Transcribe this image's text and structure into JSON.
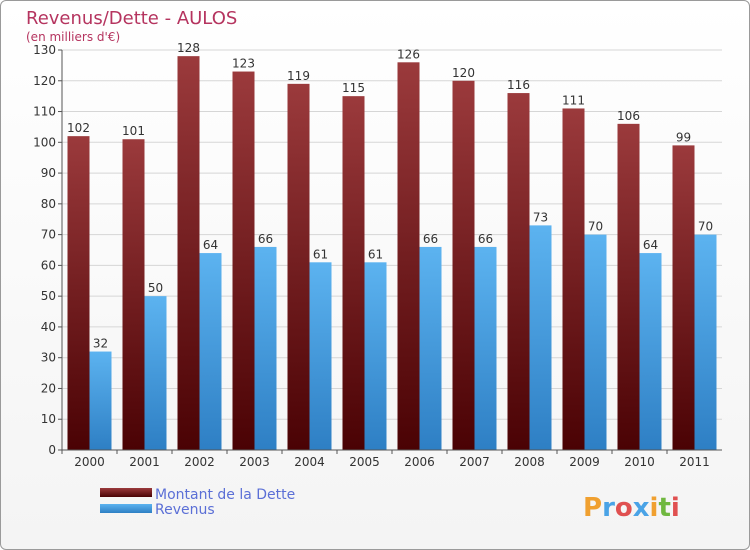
{
  "chart_data": {
    "type": "bar",
    "title": "Revenus/Dette - AULOS",
    "subtitle": "(en milliers d'€)",
    "categories": [
      "2000",
      "2001",
      "2002",
      "2003",
      "2004",
      "2005",
      "2006",
      "2007",
      "2008",
      "2009",
      "2010",
      "2011"
    ],
    "series": [
      {
        "name": "Montant de la Dette",
        "values": [
          102,
          101,
          128,
          123,
          119,
          115,
          126,
          120,
          116,
          111,
          106,
          99
        ],
        "color": "#7a1416"
      },
      {
        "name": "Revenus",
        "values": [
          32,
          50,
          64,
          66,
          61,
          61,
          66,
          66,
          73,
          70,
          64,
          70
        ],
        "color": "#4aa3e6"
      }
    ],
    "ylim": [
      0,
      130
    ],
    "yticks": [
      0,
      10,
      20,
      30,
      40,
      50,
      60,
      70,
      80,
      90,
      100,
      110,
      120,
      130
    ],
    "grid": true,
    "legend": "bottom-left"
  },
  "brand": {
    "logo_letters": [
      "P",
      "r",
      "o",
      "x",
      "i",
      "t",
      "i"
    ],
    "logo_colors": [
      "#f0a030",
      "#4aa3e6",
      "#e05050",
      "#4aa3e6",
      "#f0a030",
      "#70b840",
      "#e05050"
    ]
  }
}
